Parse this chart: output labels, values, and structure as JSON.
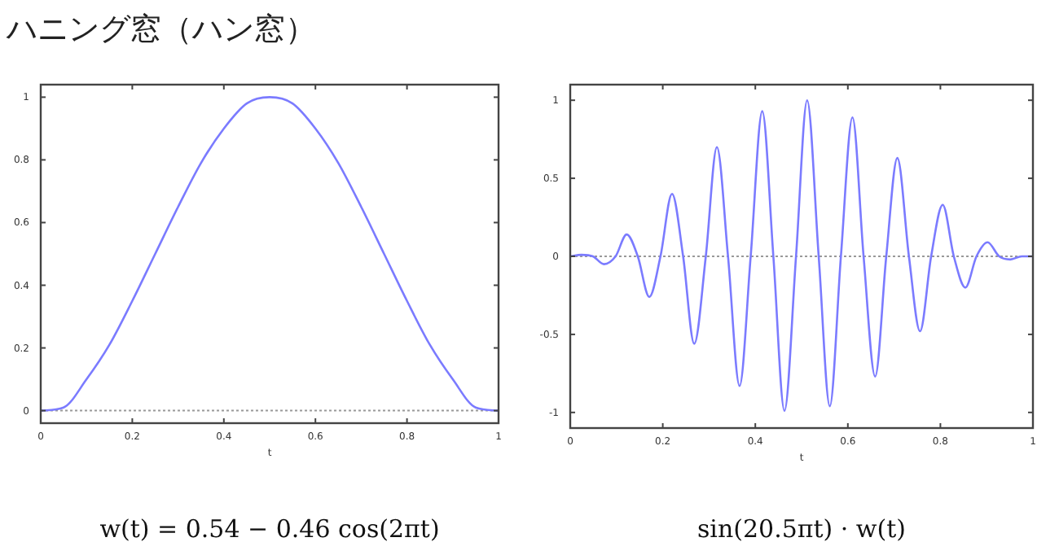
{
  "chart_data": [
    {
      "type": "line",
      "title": "ハニング窓（ハン窓）",
      "xlabel": "t",
      "x": [
        0,
        0.05,
        0.1,
        0.15,
        0.2,
        0.25,
        0.3,
        0.35,
        0.4,
        0.45,
        0.5,
        0.55,
        0.6,
        0.65,
        0.7,
        0.75,
        0.8,
        0.85,
        0.9,
        0.95,
        1
      ],
      "series": [
        {
          "color": "#7b7bff",
          "values": [
            0,
            0.01,
            0.1,
            0.21,
            0.35,
            0.5,
            0.65,
            0.79,
            0.9,
            0.98,
            1,
            0.98,
            0.9,
            0.79,
            0.65,
            0.5,
            0.35,
            0.21,
            0.1,
            0.01,
            0
          ]
        }
      ],
      "xlim": [
        0,
        1
      ],
      "ylim": [
        -0.04,
        1.04
      ],
      "xticks": [
        0,
        0.2,
        0.4,
        0.6,
        0.8,
        1
      ],
      "yticks": [
        0,
        0.2,
        0.4,
        0.6,
        0.8,
        1
      ],
      "ref_lines": [
        {
          "axis": "y",
          "value": 0,
          "color": "#999999",
          "line_style": "dotted"
        }
      ],
      "annotations": [
        "w(t) = 0.54 − 0.46 cos(2πt)"
      ]
    },
    {
      "type": "line",
      "xlabel": "t",
      "x": [
        0,
        0.024,
        0.049,
        0.073,
        0.098,
        0.122,
        0.146,
        0.171,
        0.195,
        0.22,
        0.244,
        0.268,
        0.293,
        0.317,
        0.341,
        0.366,
        0.39,
        0.415,
        0.439,
        0.463,
        0.488,
        0.512,
        0.537,
        0.561,
        0.585,
        0.61,
        0.634,
        0.659,
        0.683,
        0.707,
        0.732,
        0.756,
        0.78,
        0.805,
        0.829,
        0.854,
        0.878,
        0.902,
        0.927,
        0.951,
        0.976,
        1
      ],
      "series": [
        {
          "color": "#7b7bff",
          "values": [
            0,
            0.01,
            0,
            -0.05,
            0,
            0.14,
            0,
            -0.26,
            0,
            0.4,
            0,
            -0.56,
            0,
            0.7,
            0,
            -0.83,
            0,
            0.93,
            0,
            -0.99,
            0,
            1,
            0,
            -0.96,
            0,
            0.89,
            0,
            -0.77,
            0,
            0.63,
            0,
            -0.48,
            0,
            0.33,
            0,
            -0.2,
            0,
            0.09,
            0,
            -0.02,
            0,
            0
          ]
        }
      ],
      "xlim": [
        0,
        1
      ],
      "ylim": [
        -1.1,
        1.1
      ],
      "xticks": [
        0,
        0.2,
        0.4,
        0.6,
        0.8,
        1
      ],
      "yticks": [
        -1,
        -0.5,
        0,
        0.5,
        1
      ],
      "ref_lines": [
        {
          "axis": "y",
          "value": 0,
          "color": "#999999",
          "line_style": "dotted"
        }
      ],
      "annotations": [
        "sin(20.5πt) · w(t)"
      ]
    }
  ]
}
